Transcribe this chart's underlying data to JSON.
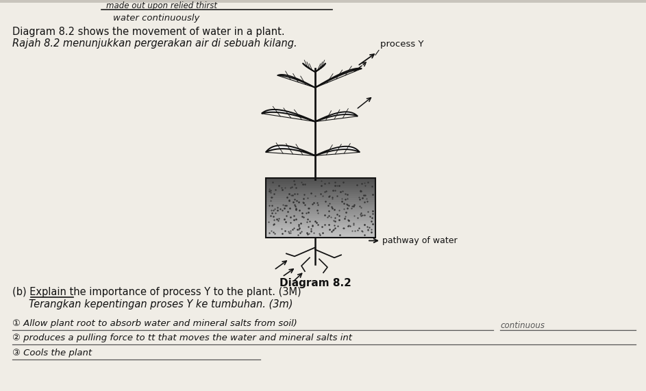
{
  "bg_color": "#c8c4bc",
  "paper_color": "#e8e5de",
  "handwritten_top": "made out upon relied thirst",
  "handwritten_second": "water continuously",
  "line1": "Diagram 8.2 shows the movement of water in a plant.",
  "line2": "Rajah 8.2 menunjukkan pergerakan air di sebuah kilang.",
  "process_y": "process Y",
  "pathway_label": "pathway of water",
  "diagram_caption": "Diagram 8.2",
  "q_b_en": "(b) Explain the importance of process Y to the plant. (3M)",
  "q_b_my": "Terangkan kepentingan proses Y ke tumbuhan. (3m)",
  "ans1": "① Allow plant root to absorb water and mineral salts from soil)",
  "ans1_cont": "continuous",
  "ans2": "② produces a pulling force to tt that moves the water and mineral salts int",
  "ans3": "③ Cools the plant"
}
